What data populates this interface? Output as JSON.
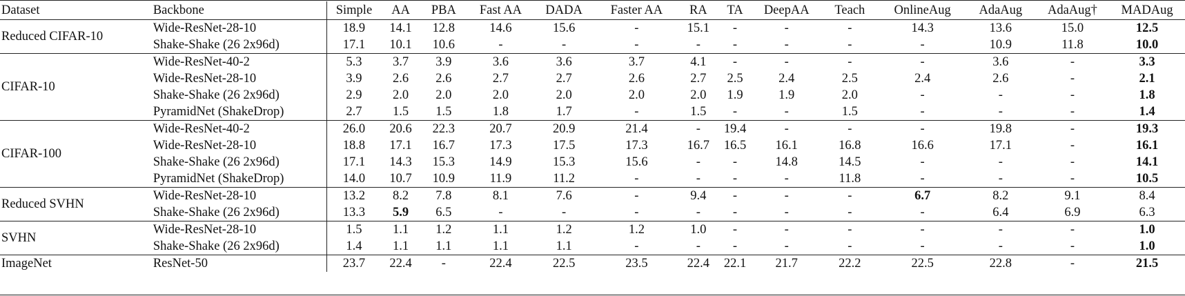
{
  "headers": [
    "Dataset",
    "Backbone",
    "Simple",
    "AA",
    "PBA",
    "Fast AA",
    "DADA",
    "Faster AA",
    "RA",
    "TA",
    "DeepAA",
    "Teach",
    "OnlineAug",
    "AdaAug",
    "AdaAug†",
    "MADAug"
  ],
  "groups": [
    {
      "dataset": "Reduced CIFAR-10",
      "rows": [
        {
          "backbone": "Wide-ResNet-28-10",
          "values": [
            "18.9",
            "14.1",
            "12.8",
            "14.6",
            "15.6",
            "-",
            "15.1",
            "-",
            "-",
            "-",
            "14.3",
            "13.6",
            "15.0",
            "12.5"
          ],
          "bold": [
            13
          ]
        },
        {
          "backbone": "Shake-Shake (26 2x96d)",
          "values": [
            "17.1",
            "10.1",
            "10.6",
            "-",
            "-",
            "-",
            "-",
            "-",
            "-",
            "-",
            "-",
            "10.9",
            "11.8",
            "10.0"
          ],
          "bold": [
            13
          ]
        }
      ]
    },
    {
      "dataset": "CIFAR-10",
      "rows": [
        {
          "backbone": "Wide-ResNet-40-2",
          "values": [
            "5.3",
            "3.7",
            "3.9",
            "3.6",
            "3.6",
            "3.7",
            "4.1",
            "-",
            "-",
            "-",
            "-",
            "3.6",
            "-",
            "3.3"
          ],
          "bold": [
            13
          ]
        },
        {
          "backbone": "Wide-ResNet-28-10",
          "values": [
            "3.9",
            "2.6",
            "2.6",
            "2.7",
            "2.7",
            "2.6",
            "2.7",
            "2.5",
            "2.4",
            "2.5",
            "2.4",
            "2.6",
            "-",
            "2.1"
          ],
          "bold": [
            13
          ]
        },
        {
          "backbone": "Shake-Shake (26 2x96d)",
          "values": [
            "2.9",
            "2.0",
            "2.0",
            "2.0",
            "2.0",
            "2.0",
            "2.0",
            "1.9",
            "1.9",
            "2.0",
            "-",
            "-",
            "-",
            "1.8"
          ],
          "bold": [
            13
          ]
        },
        {
          "backbone": "PyramidNet (ShakeDrop)",
          "values": [
            "2.7",
            "1.5",
            "1.5",
            "1.8",
            "1.7",
            "-",
            "1.5",
            "-",
            "-",
            "1.5",
            "-",
            "-",
            "-",
            "1.4"
          ],
          "bold": [
            13
          ]
        }
      ]
    },
    {
      "dataset": "CIFAR-100",
      "rows": [
        {
          "backbone": "Wide-ResNet-40-2",
          "values": [
            "26.0",
            "20.6",
            "22.3",
            "20.7",
            "20.9",
            "21.4",
            "-",
            "19.4",
            "-",
            "-",
            "-",
            "19.8",
            "-",
            "19.3"
          ],
          "bold": [
            13
          ]
        },
        {
          "backbone": "Wide-ResNet-28-10",
          "values": [
            "18.8",
            "17.1",
            "16.7",
            "17.3",
            "17.5",
            "17.3",
            "16.7",
            "16.5",
            "16.1",
            "16.8",
            "16.6",
            "17.1",
            "-",
            "16.1"
          ],
          "bold": [
            13
          ]
        },
        {
          "backbone": "Shake-Shake (26 2x96d)",
          "values": [
            "17.1",
            "14.3",
            "15.3",
            "14.9",
            "15.3",
            "15.6",
            "-",
            "-",
            "14.8",
            "14.5",
            "-",
            "-",
            "-",
            "14.1"
          ],
          "bold": [
            13
          ]
        },
        {
          "backbone": "PyramidNet (ShakeDrop)",
          "values": [
            "14.0",
            "10.7",
            "10.9",
            "11.9",
            "11.2",
            "-",
            "-",
            "-",
            "-",
            "11.8",
            "-",
            "-",
            "-",
            "10.5"
          ],
          "bold": [
            13
          ]
        }
      ]
    },
    {
      "dataset": "Reduced SVHN",
      "rows": [
        {
          "backbone": "Wide-ResNet-28-10",
          "values": [
            "13.2",
            "8.2",
            "7.8",
            "8.1",
            "7.6",
            "-",
            "9.4",
            "-",
            "-",
            "-",
            "6.7",
            "8.2",
            "9.1",
            "8.4"
          ],
          "bold": [
            10
          ]
        },
        {
          "backbone": "Shake-Shake (26 2x96d)",
          "values": [
            "13.3",
            "5.9",
            "6.5",
            "-",
            "-",
            "-",
            "-",
            "-",
            "-",
            "-",
            "-",
            "6.4",
            "6.9",
            "6.3"
          ],
          "bold": [
            1
          ]
        }
      ]
    },
    {
      "dataset": "SVHN",
      "rows": [
        {
          "backbone": "Wide-ResNet-28-10",
          "values": [
            "1.5",
            "1.1",
            "1.2",
            "1.1",
            "1.2",
            "1.2",
            "1.0",
            "-",
            "-",
            "-",
            "-",
            "-",
            "-",
            "1.0"
          ],
          "bold": [
            13
          ]
        },
        {
          "backbone": "Shake-Shake (26 2x96d)",
          "values": [
            "1.4",
            "1.1",
            "1.1",
            "1.1",
            "1.1",
            "-",
            "-",
            "-",
            "-",
            "-",
            "-",
            "-",
            "-",
            "1.0"
          ],
          "bold": [
            13
          ]
        }
      ]
    },
    {
      "dataset": "ImageNet",
      "rows": [
        {
          "backbone": "ResNet-50",
          "values": [
            "23.7",
            "22.4",
            "-",
            "22.4",
            "22.5",
            "23.5",
            "22.4",
            "22.1",
            "21.7",
            "22.2",
            "22.5",
            "22.8",
            "-",
            "21.5"
          ],
          "bold": [
            13
          ]
        }
      ]
    }
  ]
}
